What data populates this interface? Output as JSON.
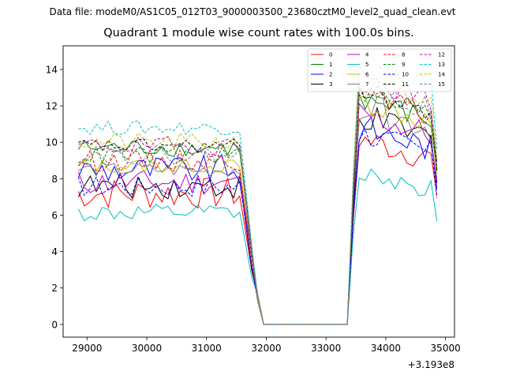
{
  "suptitle": "Data file: modeM0/AS1C05_012T03_9000003500_23680cztM0_level2_quad_clean.evt",
  "chart_data": {
    "type": "line",
    "title": "Quadrant 1 module wise count rates with 100.0s bins.",
    "xlabel": "",
    "ylabel": "",
    "x_offset_label": "+3.193e8",
    "xlim": [
      28600,
      35150
    ],
    "ylim": [
      -0.7,
      15.3
    ],
    "xticks": [
      29000,
      30000,
      31000,
      32000,
      33000,
      34000,
      35000
    ],
    "xtick_labels": [
      "29000",
      "30000",
      "31000",
      "32000",
      "33000",
      "34000",
      "35000"
    ],
    "yticks": [
      0,
      2,
      4,
      6,
      8,
      10,
      12,
      14
    ],
    "ytick_labels": [
      "0",
      "2",
      "4",
      "6",
      "8",
      "10",
      "12",
      "14"
    ],
    "legend_position": "top-right",
    "legend_columns": 4,
    "segments": [
      {
        "x_start": 28855,
        "x_step": 100,
        "count": 28
      },
      {
        "x_start": 31755,
        "x_step": 100,
        "count": 2
      },
      {
        "x_start": 31955,
        "x_step": 100,
        "count": 15
      },
      {
        "x_start": 33455,
        "x_step": 100,
        "count": 15
      }
    ],
    "series": [
      {
        "name": "0",
        "color": "#ff0000",
        "dash": "solid",
        "base1": 7.2,
        "base2": 9.5,
        "a1": 0.9,
        "a2": 0.8
      },
      {
        "name": "1",
        "color": "#008000",
        "dash": "solid",
        "base1": 9.7,
        "base2": 11.6,
        "a1": 0.5,
        "a2": 0.7
      },
      {
        "name": "2",
        "color": "#0000ff",
        "dash": "solid",
        "base1": 8.5,
        "base2": 10.1,
        "a1": 0.8,
        "a2": 0.8
      },
      {
        "name": "3",
        "color": "#000000",
        "dash": "solid",
        "base1": 7.6,
        "base2": 10.6,
        "a1": 0.7,
        "a2": 0.8
      },
      {
        "name": "4",
        "color": "#bf00bf",
        "dash": "solid",
        "base1": 7.8,
        "base2": 10.8,
        "a1": 0.7,
        "a2": 0.8
      },
      {
        "name": "5",
        "color": "#00bfbf",
        "dash": "solid",
        "base1": 6.1,
        "base2": 7.8,
        "a1": 0.5,
        "a2": 0.6
      },
      {
        "name": "6",
        "color": "#bfbf00",
        "dash": "solid",
        "base1": 8.7,
        "base2": 11.5,
        "a1": 0.4,
        "a2": 0.7
      },
      {
        "name": "7",
        "color": "#808080",
        "dash": "solid",
        "base1": 8.5,
        "base2": 11.2,
        "a1": 0.4,
        "a2": 0.8
      },
      {
        "name": "8",
        "color": "#ff0000",
        "dash": "dashed",
        "base1": 9.0,
        "base2": 11.8,
        "a1": 0.6,
        "a2": 0.7
      },
      {
        "name": "9",
        "color": "#008000",
        "dash": "dashed",
        "base1": 9.3,
        "base2": 11.9,
        "a1": 0.5,
        "a2": 0.7
      },
      {
        "name": "10",
        "color": "#0000ff",
        "dash": "dashed",
        "base1": 7.6,
        "base2": 9.8,
        "a1": 0.6,
        "a2": 0.7
      },
      {
        "name": "11",
        "color": "#000000",
        "dash": "dashed",
        "base1": 9.8,
        "base2": 12.0,
        "a1": 0.4,
        "a2": 0.6
      },
      {
        "name": "12",
        "color": "#bf00bf",
        "dash": "dashed",
        "base1": 9.8,
        "base2": 12.6,
        "a1": 0.5,
        "a2": 0.7
      },
      {
        "name": "13",
        "color": "#00bfbf",
        "dash": "dashed",
        "base1": 10.8,
        "base2": 13.6,
        "a1": 0.4,
        "a2": 0.6
      },
      {
        "name": "14",
        "color": "#bfbf00",
        "dash": "dashed",
        "base1": 10.0,
        "base2": 12.9,
        "a1": 0.5,
        "a2": 0.6
      },
      {
        "name": "15",
        "color": "#808080",
        "dash": "dashed",
        "base1": 9.3,
        "base2": 12.3,
        "a1": 0.5,
        "a2": 0.7
      }
    ]
  }
}
